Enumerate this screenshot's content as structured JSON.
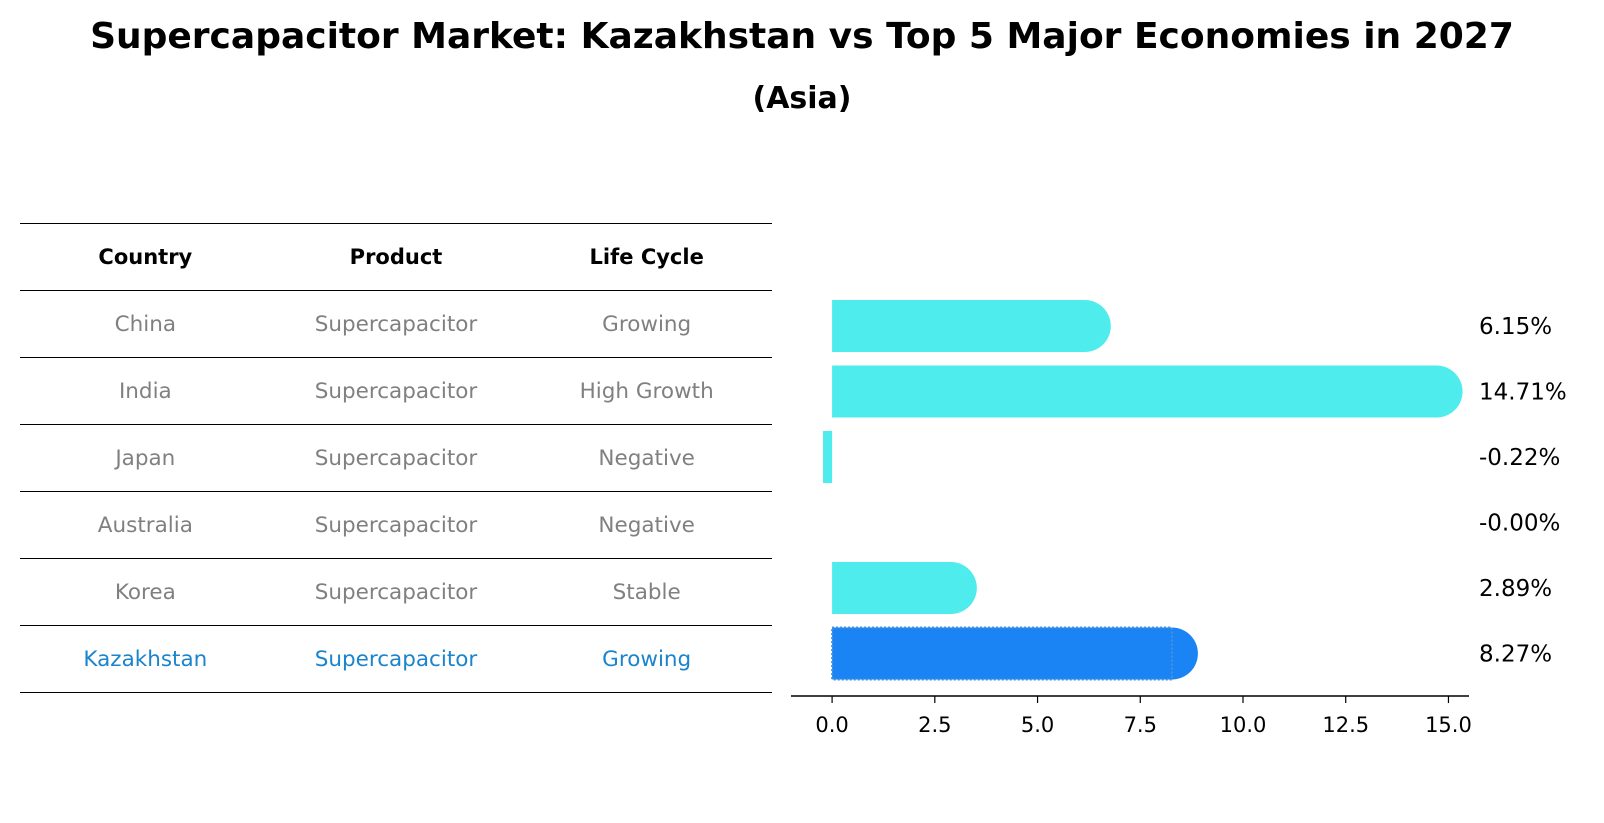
{
  "title": "Supercapacitor Market: Kazakhstan vs Top 5 Major Economies in 2027",
  "subtitle": "(Asia)",
  "table": {
    "headers": [
      "Country",
      "Product",
      "Life Cycle"
    ],
    "rows": [
      {
        "country": "China",
        "product": "Supercapacitor",
        "life_cycle": "Growing"
      },
      {
        "country": "India",
        "product": "Supercapacitor",
        "life_cycle": "High Growth"
      },
      {
        "country": "Japan",
        "product": "Supercapacitor",
        "life_cycle": "Negative"
      },
      {
        "country": "Australia",
        "product": "Supercapacitor",
        "life_cycle": "Negative"
      },
      {
        "country": "Korea",
        "product": "Supercapacitor",
        "life_cycle": "Stable"
      },
      {
        "country": "Kazakhstan",
        "product": "Supercapacitor",
        "life_cycle": "Growing"
      }
    ]
  },
  "colors": {
    "bar": "#4eecec",
    "highlight_bar": "#1a84f5",
    "highlight_text": "#1a84cc",
    "muted_text": "#808080"
  },
  "chart_data": {
    "type": "bar",
    "orientation": "horizontal",
    "categories": [
      "China",
      "India",
      "Japan",
      "Australia",
      "Korea",
      "Kazakhstan"
    ],
    "values": [
      6.15,
      14.71,
      -0.22,
      -0.0,
      2.89,
      8.27
    ],
    "value_labels": [
      "6.15%",
      "14.71%",
      "-0.22%",
      "-0.00%",
      "2.89%",
      "8.27%"
    ],
    "highlight_category": "Kazakhstan",
    "xlim": [
      -1,
      15.5
    ],
    "xticks": [
      0.0,
      2.5,
      5.0,
      7.5,
      10.0,
      12.5,
      15.0
    ],
    "xtick_labels": [
      "0.0",
      "2.5",
      "5.0",
      "7.5",
      "10.0",
      "12.5",
      "15.0"
    ],
    "title": "",
    "xlabel": "",
    "ylabel": ""
  }
}
